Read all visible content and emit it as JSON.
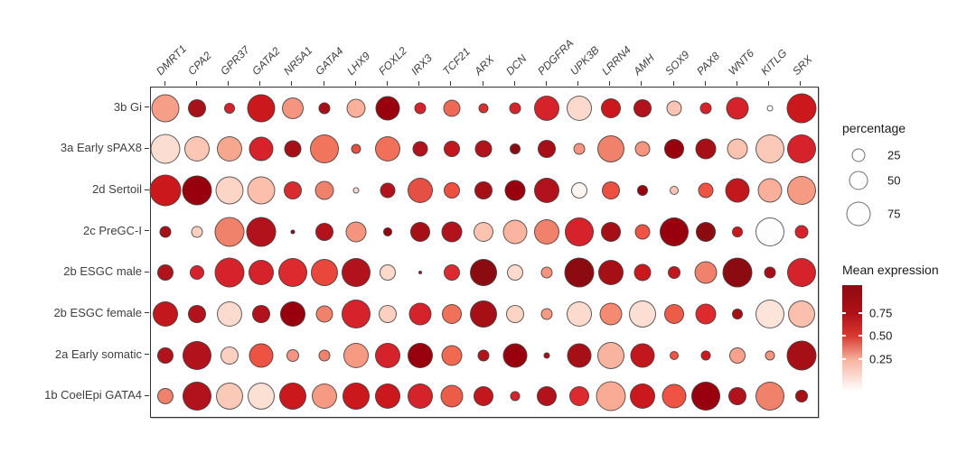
{
  "chart_data": {
    "type": "scatter",
    "subtype": "dot-plot-gene-expression",
    "title": "",
    "grid": false,
    "genes": [
      "DMRT1",
      "CPA2",
      "GPR37",
      "GATA2",
      "NR5A1",
      "GATA4",
      "LHX9",
      "FOXL2",
      "IRX3",
      "TCF21",
      "ARX",
      "DCN",
      "PDGFRA",
      "UPK3B",
      "LRRN4",
      "AMH",
      "SOX9",
      "PAX8",
      "WNT6",
      "KITLG",
      "SRX"
    ],
    "rows": [
      {
        "label": "3b Gi",
        "sizes": [
          31,
          20,
          12,
          31,
          24,
          13,
          21,
          27,
          13,
          19,
          11,
          13,
          28,
          28,
          22,
          20,
          17,
          13,
          25,
          7,
          33
        ],
        "colors": [
          "#f79e89",
          "#a8101a",
          "#d6232b",
          "#cb181d",
          "#f5947f",
          "#a50f15",
          "#fbb09b",
          "#99000d",
          "#d6232b",
          "#ef6a55",
          "#da2f2b",
          "#d6232b",
          "#d6232b",
          "#fcd9cc",
          "#cb181d",
          "#b1121b",
          "#fbc4b4",
          "#d6232b",
          "#d6232b",
          "#ffffff",
          "#cb181d"
        ]
      },
      {
        "label": "3a Early sPAX8",
        "sizes": [
          33,
          28,
          28,
          27,
          19,
          32,
          11,
          28,
          17,
          18,
          19,
          12,
          20,
          13,
          30,
          17,
          22,
          23,
          23,
          32,
          32
        ],
        "colors": [
          "#fbddd2",
          "#fbc6b3",
          "#f8a78f",
          "#d6232b",
          "#a50f15",
          "#f0755c",
          "#e25043",
          "#f0705a",
          "#b1121b",
          "#c2181d",
          "#b1121b",
          "#8c0b10",
          "#a50f15",
          "#f5947f",
          "#f0826b",
          "#f5947f",
          "#99000d",
          "#a50f15",
          "#fbc3b0",
          "#fbc9b8",
          "#d6232b"
        ]
      },
      {
        "label": "2d Sertoil",
        "sizes": [
          35,
          33,
          31,
          31,
          20,
          21,
          7,
          17,
          28,
          18,
          20,
          23,
          28,
          18,
          20,
          12,
          10,
          17,
          27,
          27,
          32
        ],
        "colors": [
          "#cb181d",
          "#99000d",
          "#fcd5c6",
          "#fbbfac",
          "#d92b2e",
          "#f0826b",
          "#fbdcd1",
          "#b1121b",
          "#e64f44",
          "#ed4f41",
          "#a50f15",
          "#99000d",
          "#b1121b",
          "#fef4ef",
          "#ed4f41",
          "#99000d",
          "#fbc4b4",
          "#ef5343",
          "#c2181d",
          "#f9af9a",
          "#f69a84"
        ]
      },
      {
        "label": "2c PreGC-I",
        "sizes": [
          13,
          13,
          33,
          33,
          5,
          20,
          23,
          10,
          22,
          23,
          22,
          27,
          28,
          32,
          22,
          17,
          32,
          22,
          12,
          32,
          15
        ],
        "colors": [
          "#a50f15",
          "#fcd0c0",
          "#f0826b",
          "#b1121b",
          "#8c0b10",
          "#b1121b",
          "#f5947f",
          "#99000d",
          "#a50f15",
          "#b1121b",
          "#fbc3b0",
          "#fbb4a0",
          "#f0826b",
          "#d6232b",
          "#a50f15",
          "#ef5343",
          "#99000d",
          "#8c0b10",
          "#cb181d",
          "#fdfdfd",
          "#d6232b"
        ]
      },
      {
        "label": "2b ESGC male",
        "sizes": [
          18,
          16,
          33,
          28,
          32,
          30,
          32,
          18,
          4,
          18,
          30,
          18,
          13,
          33,
          28,
          19,
          14,
          25,
          33,
          13,
          32
        ],
        "colors": [
          "#b1121b",
          "#d6232b",
          "#d6232b",
          "#d6232b",
          "#dd2a2e",
          "#ea473c",
          "#b1121b",
          "#fcd9cc",
          "#a50f15",
          "#dd2a2e",
          "#8c0b10",
          "#fcdbce",
          "#f5947f",
          "#8c0b10",
          "#a50f15",
          "#cb181d",
          "#c2181d",
          "#f0826b",
          "#8c0b10",
          "#a50f15",
          "#d6232b"
        ]
      },
      {
        "label": "2b ESGC female",
        "sizes": [
          28,
          20,
          28,
          20,
          28,
          19,
          32,
          20,
          25,
          22,
          30,
          20,
          13,
          28,
          25,
          30,
          22,
          23,
          12,
          32,
          30
        ],
        "colors": [
          "#c2181d",
          "#b1121b",
          "#fcdacd",
          "#b1121b",
          "#99000d",
          "#f0826b",
          "#d6232b",
          "#fcd0c0",
          "#d6232b",
          "#f0705a",
          "#a50f15",
          "#fcd4c4",
          "#f69a84",
          "#fcdbce",
          "#f58a73",
          "#fcded2",
          "#ed5b49",
          "#dd2a2e",
          "#a50f15",
          "#fce4da",
          "#fbc0ad"
        ]
      },
      {
        "label": "2a Early somatic",
        "sizes": [
          18,
          32,
          20,
          27,
          14,
          13,
          28,
          28,
          28,
          23,
          13,
          27,
          7,
          27,
          30,
          27,
          10,
          11,
          18,
          11,
          33
        ],
        "colors": [
          "#b1121b",
          "#b1121b",
          "#fcd0c0",
          "#ed5343",
          "#f5947f",
          "#f0826b",
          "#f69a84",
          "#d6232b",
          "#99000d",
          "#f06a52",
          "#b1121b",
          "#99000d",
          "#a50f15",
          "#a50f15",
          "#f9b4a0",
          "#c2181d",
          "#ef5343",
          "#cb181d",
          "#f8a18c",
          "#f5947f",
          "#a50f15"
        ]
      },
      {
        "label": "1b CoelEpi GATA4",
        "sizes": [
          18,
          32,
          30,
          30,
          30,
          28,
          30,
          28,
          28,
          25,
          22,
          11,
          22,
          22,
          33,
          28,
          27,
          32,
          20,
          32,
          14
        ],
        "colors": [
          "#f0826b",
          "#b1121b",
          "#fbc9b8",
          "#fde0d4",
          "#cb181d",
          "#f69a84",
          "#cb181d",
          "#cb181d",
          "#d6232b",
          "#ed5b49",
          "#c2181d",
          "#d6232b",
          "#b1121b",
          "#dd2a2e",
          "#f9ab95",
          "#cb181d",
          "#ef5343",
          "#99000d",
          "#b1121b",
          "#f0826b",
          "#a50f15"
        ]
      }
    ],
    "size_legend": {
      "title": "percentage",
      "entries": [
        {
          "label": "25",
          "diameter": 15
        },
        {
          "label": "50",
          "diameter": 21
        },
        {
          "label": "75",
          "diameter": 27
        }
      ]
    },
    "color_legend": {
      "title": "Mean expression",
      "tick_labels": [
        "0.75",
        "0.50",
        "0.25"
      ],
      "gradient_stops": [
        "#8f0a10",
        "#b01117",
        "#d93a30",
        "#f7b6a3",
        "#ffffff"
      ]
    }
  }
}
